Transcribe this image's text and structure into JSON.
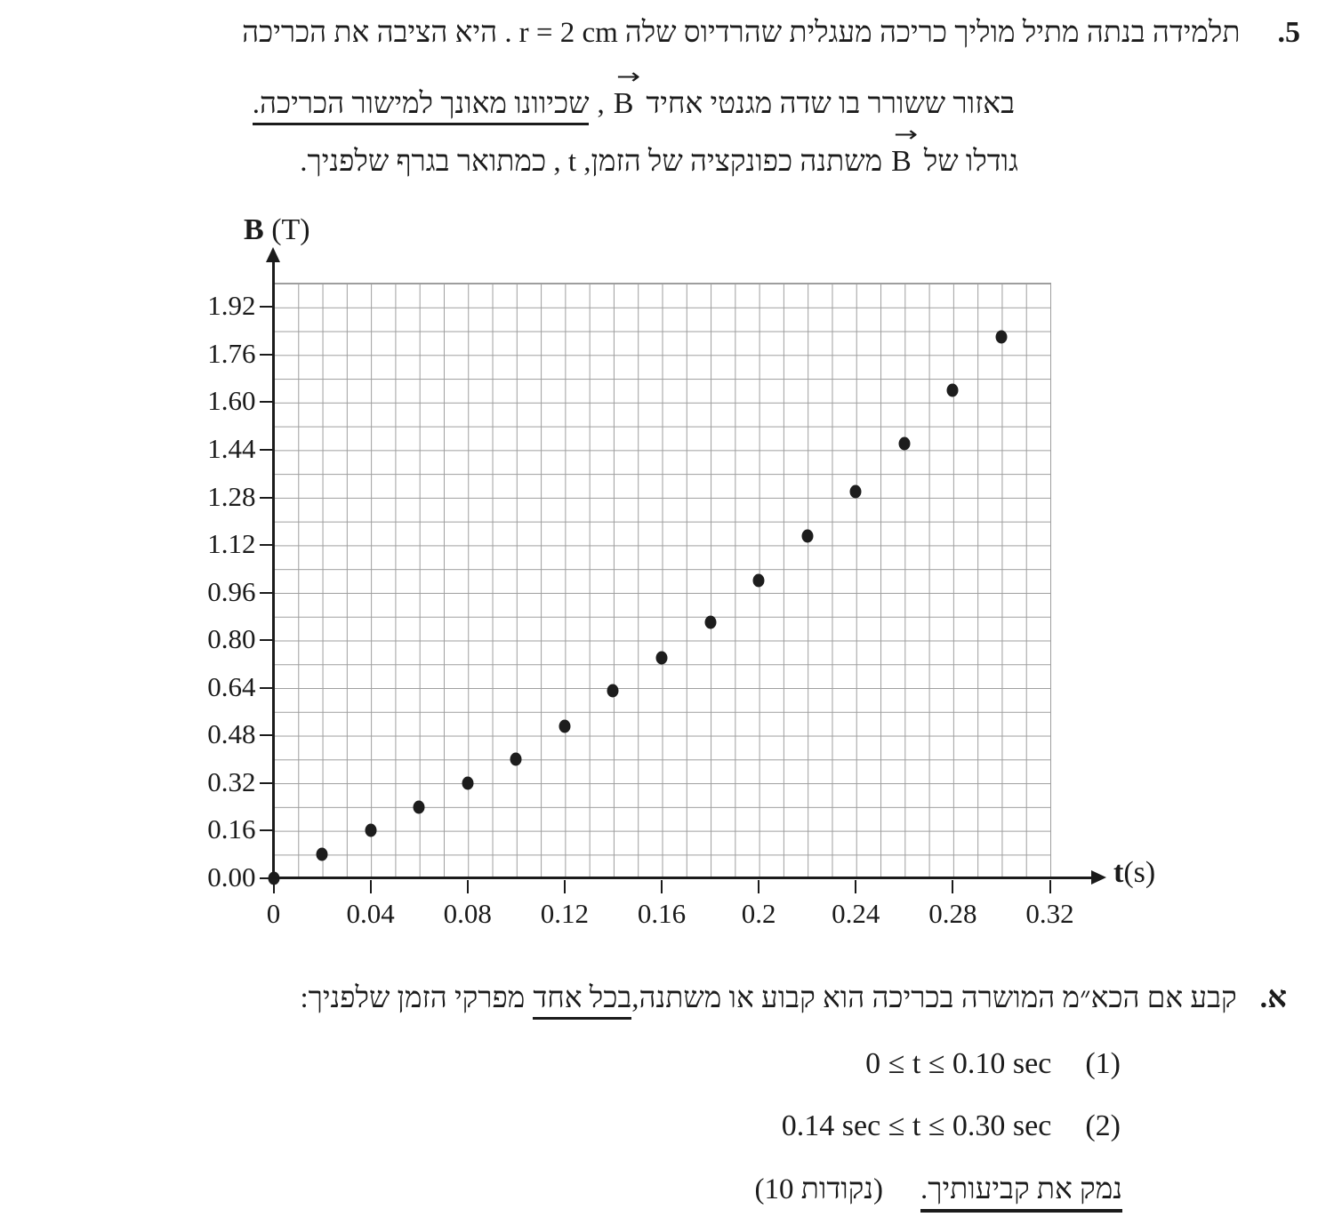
{
  "question": {
    "number": "5.",
    "line1_before": "תלמידה בנתה מתיל מוליך כריכה מעגלית שהרדיוס שלה",
    "line1_formula": "r = 2 cm",
    "line1_after": ". היא הציבה את הכריכה",
    "line2_part1": "באזור ששורר בו שדה מגנטי אחיד",
    "line2_b": "B",
    "line2_comma": ",",
    "line2_underlined": "שכיוונו מאונך למישור הכריכה.",
    "line3_part1": "גודלו של",
    "line3_b": "B",
    "line3_part2": "משתנה כפונקציה של הזמן, t , כמתואר בגרף שלפניך."
  },
  "icons": {
    "vector_arrow": "→"
  },
  "chart_data": {
    "type": "scatter",
    "title": "",
    "xlabel": "t(s)",
    "ylabel": "B (T)",
    "xlabel_main": "t",
    "xlabel_unit": "(s)",
    "ylabel_main": "B",
    "ylabel_unit": "(T)",
    "xlim": [
      0,
      0.32
    ],
    "ylim": [
      0,
      2.0
    ],
    "grid": true,
    "grid_step_x": 0.01,
    "grid_step_y": 0.08,
    "legend": "none",
    "x": [
      0,
      0.02,
      0.04,
      0.06,
      0.08,
      0.1,
      0.12,
      0.14,
      0.16,
      0.18,
      0.2,
      0.22,
      0.24,
      0.26,
      0.28,
      0.3
    ],
    "y": [
      0.0,
      0.08,
      0.16,
      0.24,
      0.32,
      0.4,
      0.51,
      0.63,
      0.74,
      0.86,
      1.0,
      1.15,
      1.3,
      1.46,
      1.64,
      1.82
    ],
    "x_ticks": {
      "values": [
        0,
        0.04,
        0.08,
        0.12,
        0.16,
        0.2,
        0.24,
        0.28,
        0.32
      ],
      "labels": [
        "0",
        "0.04",
        "0.08",
        "0.12",
        "0.16",
        "0.2",
        "0.24",
        "0.28",
        "0.32"
      ]
    },
    "y_ticks": {
      "values": [
        0,
        0.16,
        0.32,
        0.48,
        0.64,
        0.8,
        0.96,
        1.12,
        1.28,
        1.44,
        1.6,
        1.76,
        1.92
      ],
      "labels": [
        "0.00",
        "0.16",
        "0.32",
        "0.48",
        "0.64",
        "0.80",
        "0.96",
        "1.12",
        "1.28",
        "1.44",
        "1.60",
        "1.76",
        "1.92"
      ]
    },
    "colors": {
      "point": "#1d1d1d",
      "grid": "#9e9e9e",
      "axis": "#1b1b1b"
    }
  },
  "section_a": {
    "label": "א.",
    "text_before": "קבע אם הכא״מ המושרה בכריכה הוא קבוע או משתנה,",
    "text_underlined": "בכל אחד",
    "text_after": "מפרקי הזמן שלפניך:",
    "item1_num": "(1)",
    "item1_formula": "0 ≤ t ≤ 0.10 sec",
    "item2_num": "(2)",
    "item2_formula": "0.14 sec ≤ t ≤ 0.30 sec",
    "footer_underlined": "נמק את קביעותיך.",
    "footer_points": "(10 נקודות)"
  }
}
